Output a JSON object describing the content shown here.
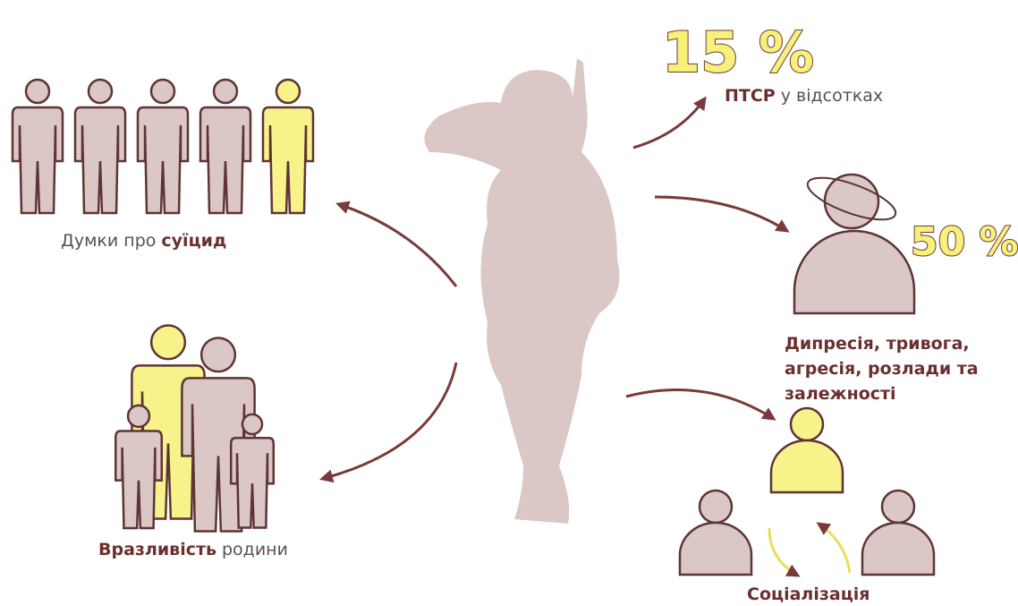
{
  "ptsd": {
    "percent": "15 %",
    "label_bold": "ПТСР",
    "label_rest": "у відсотках"
  },
  "mental": {
    "percent": "50 %",
    "lines": [
      "Дипресія, тривога,",
      "агресія, розлади та",
      "залежності"
    ]
  },
  "suicide": {
    "label_rest": "Думки про",
    "label_bold": "суїцид"
  },
  "family": {
    "label_bold": "Вразливість",
    "label_rest": "родини"
  },
  "social": {
    "label": "Соціалізація"
  }
}
